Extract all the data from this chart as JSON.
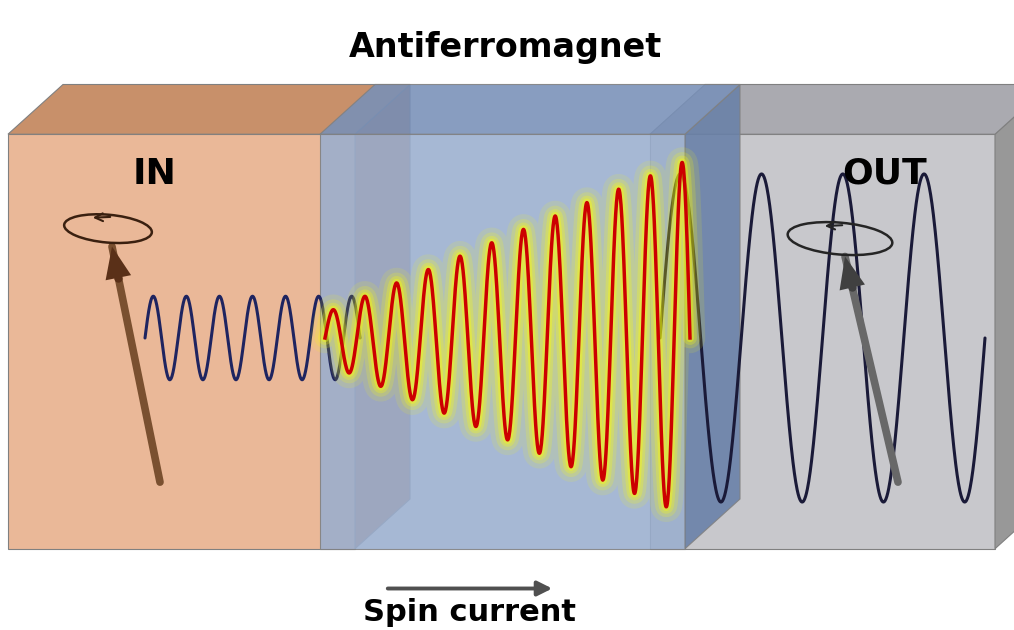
{
  "title": "Antiferromagnet",
  "label_in": "IN",
  "label_out": "OUT",
  "label_spin": "Spin current",
  "bg_color": "white",
  "box_left_face_color": "#EAB898",
  "box_left_top_color": "#C8906A",
  "box_left_side_color": "#B87858",
  "box_mid_face_color": "#9AAECE",
  "box_mid_top_color": "#7890B8",
  "box_mid_side_color": "#6880A8",
  "box_right_face_color": "#C8C8CC",
  "box_right_top_color": "#AAAAB0",
  "box_right_side_color": "#989898",
  "wave_in_color": "#1E2460",
  "wave_mid_color": "#CC0000",
  "wave_out_color": "#1A1A38",
  "glow_color": "#FFFF00",
  "arrow_color": "#505050",
  "title_fontsize": 24,
  "label_fontsize": 26,
  "spin_label_fontsize": 22
}
